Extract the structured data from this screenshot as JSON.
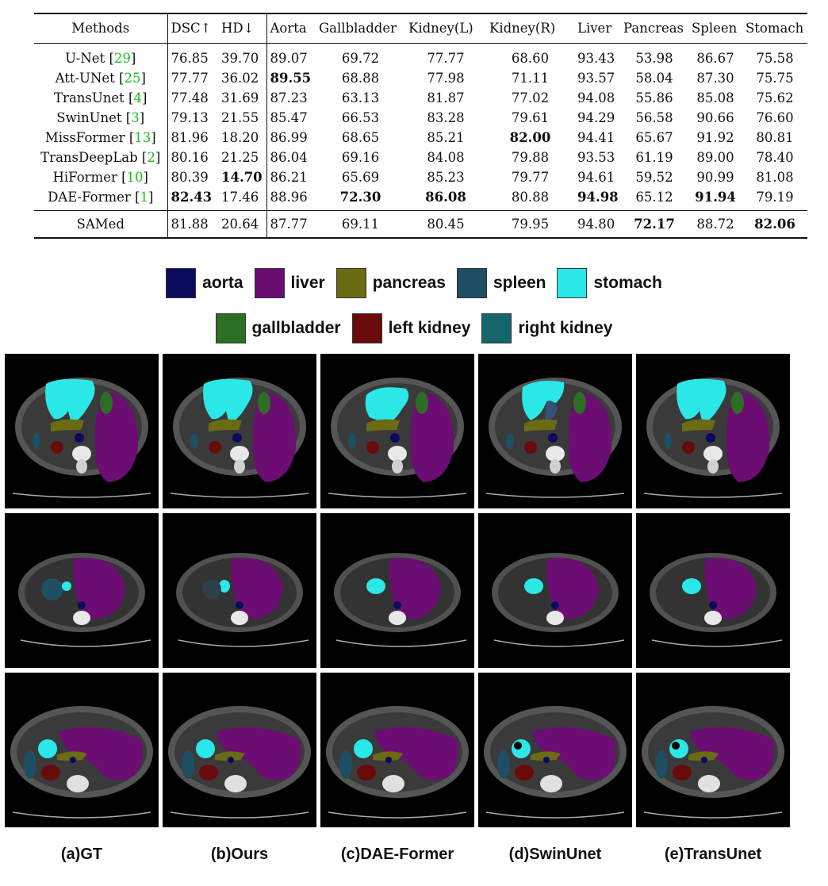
{
  "table": {
    "headers": [
      "Methods",
      "DSC↑",
      "HD↓",
      "Aorta",
      "Gallbladder",
      "Kidney(L)",
      "Kidney(R)",
      "Liver",
      "Pancreas",
      "Spleen",
      "Stomach"
    ],
    "rows": [
      {
        "method": "U-Net",
        "cite": "29",
        "values": [
          "76.85",
          "39.70",
          "89.07",
          "69.72",
          "77.77",
          "68.60",
          "93.43",
          "53.98",
          "86.67",
          "75.58"
        ],
        "bold": []
      },
      {
        "method": "Att-UNet",
        "cite": "25",
        "values": [
          "77.77",
          "36.02",
          "89.55",
          "68.88",
          "77.98",
          "71.11",
          "93.57",
          "58.04",
          "87.30",
          "75.75"
        ],
        "bold": [
          2
        ]
      },
      {
        "method": "TransUnet",
        "cite": "4",
        "values": [
          "77.48",
          "31.69",
          "87.23",
          "63.13",
          "81.87",
          "77.02",
          "94.08",
          "55.86",
          "85.08",
          "75.62"
        ],
        "bold": []
      },
      {
        "method": "SwinUnet",
        "cite": "3",
        "values": [
          "79.13",
          "21.55",
          "85.47",
          "66.53",
          "83.28",
          "79.61",
          "94.29",
          "56.58",
          "90.66",
          "76.60"
        ],
        "bold": []
      },
      {
        "method": "MissFormer",
        "cite": "13",
        "values": [
          "81.96",
          "18.20",
          "86.99",
          "68.65",
          "85.21",
          "82.00",
          "94.41",
          "65.67",
          "91.92",
          "80.81"
        ],
        "bold": [
          5
        ]
      },
      {
        "method": "TransDeepLab",
        "cite": "2",
        "values": [
          "80.16",
          "21.25",
          "86.04",
          "69.16",
          "84.08",
          "79.88",
          "93.53",
          "61.19",
          "89.00",
          "78.40"
        ],
        "bold": []
      },
      {
        "method": "HiFormer",
        "cite": "10",
        "values": [
          "80.39",
          "14.70",
          "86.21",
          "65.69",
          "85.23",
          "79.77",
          "94.61",
          "59.52",
          "90.99",
          "81.08"
        ],
        "bold": [
          1
        ]
      },
      {
        "method": "DAE-Former",
        "cite": "1",
        "values": [
          "82.43",
          "17.46",
          "88.96",
          "72.30",
          "86.08",
          "80.88",
          "94.98",
          "65.12",
          "91.94",
          "79.19"
        ],
        "bold": [
          0,
          3,
          4,
          6,
          8
        ]
      }
    ],
    "ours": {
      "method": "SAMed",
      "values": [
        "81.88",
        "20.64",
        "87.77",
        "69.11",
        "80.45",
        "79.95",
        "94.80",
        "72.17",
        "88.72",
        "82.06"
      ],
      "bold": [
        7,
        9
      ]
    }
  },
  "legend": {
    "row1": [
      {
        "label": "aorta",
        "color": "#0a0a5e"
      },
      {
        "label": "liver",
        "color": "#6b0d72"
      },
      {
        "label": "pancreas",
        "color": "#6b6b14"
      },
      {
        "label": "spleen",
        "color": "#1d4e63"
      },
      {
        "label": "stomach",
        "color": "#2be8e8"
      }
    ],
    "row2": [
      {
        "label": "gallbladder",
        "color": "#2c6e24"
      },
      {
        "label": "left kidney",
        "color": "#6a0b0b"
      },
      {
        "label": "right kidney",
        "color": "#14666a"
      }
    ]
  },
  "captions": [
    "(a)GT",
    "(b)Ours",
    "(c)DAE-Former",
    "(d)SwinUnet",
    "(e)TransUnet"
  ]
}
